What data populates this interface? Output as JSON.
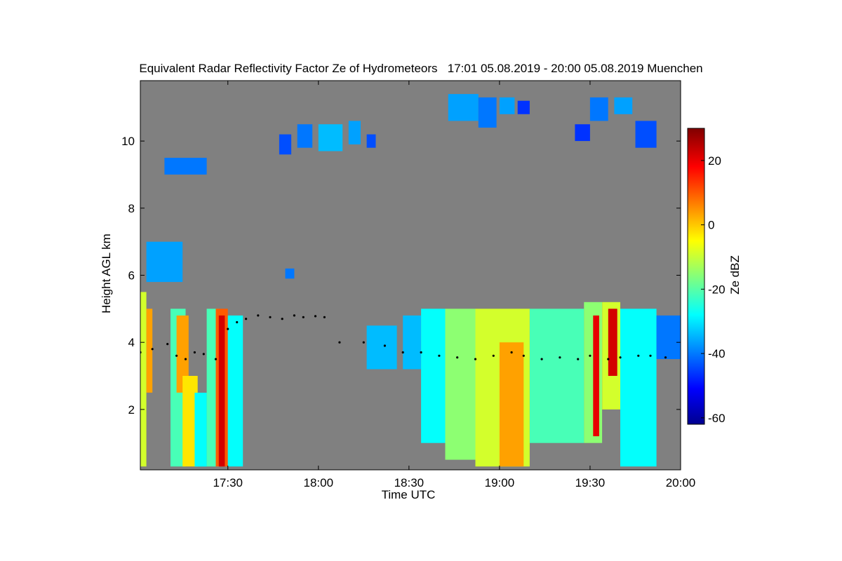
{
  "chart_data": {
    "type": "heatmap",
    "title": "Equivalent Radar Reflectivity Factor Ze of Hydrometeors   17:01 05.08.2019 - 20:00 05.08.2019 Muenchen",
    "xlabel": "Time UTC",
    "ylabel": "Height AGL km",
    "x_unit": "minutes since 17:00 UTC",
    "xlim": [
      1,
      180
    ],
    "ylim": [
      0.2,
      11.8
    ],
    "xticks": [
      {
        "value": 30,
        "label": "17:30"
      },
      {
        "value": 60,
        "label": "18:00"
      },
      {
        "value": 90,
        "label": "18:30"
      },
      {
        "value": 120,
        "label": "19:00"
      },
      {
        "value": 150,
        "label": "19:30"
      },
      {
        "value": 180,
        "label": "20:00"
      }
    ],
    "yticks": [
      {
        "value": 2,
        "label": "2"
      },
      {
        "value": 4,
        "label": "4"
      },
      {
        "value": 6,
        "label": "6"
      },
      {
        "value": 8,
        "label": "8"
      },
      {
        "value": 10,
        "label": "10"
      }
    ],
    "colorbar": {
      "label": "Ze dBZ",
      "range": [
        -62,
        30
      ],
      "ticks": [
        {
          "value": 20,
          "label": "20"
        },
        {
          "value": 0,
          "label": "0"
        },
        {
          "value": -20,
          "label": "-20"
        },
        {
          "value": -40,
          "label": "-40"
        },
        {
          "value": -60,
          "label": "-60"
        }
      ],
      "colormap": [
        "#00008f",
        "#0000ff",
        "#00ffff",
        "#ffff00",
        "#ff0000",
        "#800000"
      ]
    },
    "background_color": "#808080",
    "cells": [
      {
        "t0": 1,
        "t1": 3,
        "z0": 0.3,
        "z1": 5.5,
        "ze": -10
      },
      {
        "t0": 3,
        "t1": 5,
        "z0": 2.5,
        "z1": 5.0,
        "ze": 0
      },
      {
        "t0": 11,
        "t1": 16,
        "z0": 0.3,
        "z1": 5.0,
        "ze": -20
      },
      {
        "t0": 13,
        "t1": 17,
        "z0": 2.5,
        "z1": 4.8,
        "ze": 0
      },
      {
        "t0": 15,
        "t1": 20,
        "z0": 0.3,
        "z1": 3.0,
        "ze": -5
      },
      {
        "t0": 19,
        "t1": 23,
        "z0": 0.3,
        "z1": 2.5,
        "ze": -25
      },
      {
        "t0": 23,
        "t1": 27,
        "z0": 0.3,
        "z1": 5.0,
        "ze": -20
      },
      {
        "t0": 26,
        "t1": 30,
        "z0": 0.3,
        "z1": 5.0,
        "ze": 5
      },
      {
        "t0": 27,
        "t1": 29,
        "z0": 0.3,
        "z1": 4.8,
        "ze": 18
      },
      {
        "t0": 30,
        "t1": 35,
        "z0": 0.3,
        "z1": 4.8,
        "ze": -25
      },
      {
        "t0": 76,
        "t1": 86,
        "z0": 3.2,
        "z1": 4.5,
        "ze": -30
      },
      {
        "t0": 88,
        "t1": 94,
        "z0": 3.2,
        "z1": 4.8,
        "ze": -30
      },
      {
        "t0": 94,
        "t1": 102,
        "z0": 1.0,
        "z1": 5.0,
        "ze": -25
      },
      {
        "t0": 102,
        "t1": 112,
        "z0": 0.5,
        "z1": 5.0,
        "ze": -15
      },
      {
        "t0": 112,
        "t1": 130,
        "z0": 0.3,
        "z1": 5.0,
        "ze": -10
      },
      {
        "t0": 120,
        "t1": 128,
        "z0": 0.3,
        "z1": 4.0,
        "ze": 0
      },
      {
        "t0": 130,
        "t1": 148,
        "z0": 1.0,
        "z1": 5.0,
        "ze": -20
      },
      {
        "t0": 148,
        "t1": 154,
        "z0": 1.0,
        "z1": 5.2,
        "ze": -15
      },
      {
        "t0": 151,
        "t1": 153,
        "z0": 1.2,
        "z1": 4.8,
        "ze": 15
      },
      {
        "t0": 154,
        "t1": 160,
        "z0": 2.0,
        "z1": 5.2,
        "ze": -10
      },
      {
        "t0": 156,
        "t1": 159,
        "z0": 3.0,
        "z1": 5.0,
        "ze": 18
      },
      {
        "t0": 160,
        "t1": 172,
        "z0": 0.3,
        "z1": 5.0,
        "ze": -25
      },
      {
        "t0": 172,
        "t1": 180,
        "z0": 3.5,
        "z1": 4.8,
        "ze": -35
      },
      {
        "t0": 3,
        "t1": 15,
        "z0": 5.8,
        "z1": 7.0,
        "ze": -32
      },
      {
        "t0": 9,
        "t1": 23,
        "z0": 9.0,
        "z1": 9.5,
        "ze": -35
      },
      {
        "t0": 49,
        "t1": 52,
        "z0": 5.9,
        "z1": 6.2,
        "ze": -35
      },
      {
        "t0": 47,
        "t1": 51,
        "z0": 9.6,
        "z1": 10.2,
        "ze": -38
      },
      {
        "t0": 53,
        "t1": 58,
        "z0": 9.8,
        "z1": 10.5,
        "ze": -35
      },
      {
        "t0": 60,
        "t1": 68,
        "z0": 9.7,
        "z1": 10.5,
        "ze": -30
      },
      {
        "t0": 70,
        "t1": 74,
        "z0": 9.9,
        "z1": 10.6,
        "ze": -32
      },
      {
        "t0": 76,
        "t1": 79,
        "z0": 9.8,
        "z1": 10.2,
        "ze": -38
      },
      {
        "t0": 103,
        "t1": 113,
        "z0": 10.6,
        "z1": 11.4,
        "ze": -32
      },
      {
        "t0": 113,
        "t1": 119,
        "z0": 10.4,
        "z1": 11.3,
        "ze": -35
      },
      {
        "t0": 120,
        "t1": 125,
        "z0": 10.8,
        "z1": 11.3,
        "ze": -32
      },
      {
        "t0": 126,
        "t1": 130,
        "z0": 10.8,
        "z1": 11.2,
        "ze": -40
      },
      {
        "t0": 145,
        "t1": 150,
        "z0": 10.0,
        "z1": 10.5,
        "ze": -40
      },
      {
        "t0": 150,
        "t1": 156,
        "z0": 10.6,
        "z1": 11.3,
        "ze": -35
      },
      {
        "t0": 158,
        "t1": 164,
        "z0": 10.8,
        "z1": 11.3,
        "ze": -32
      },
      {
        "t0": 165,
        "t1": 172,
        "z0": 9.8,
        "z1": 10.6,
        "ze": -38
      }
    ],
    "melting_layer": [
      [
        1,
        3.7
      ],
      [
        5,
        3.8
      ],
      [
        10,
        3.95
      ],
      [
        13,
        3.6
      ],
      [
        16,
        3.5
      ],
      [
        19,
        3.7
      ],
      [
        22,
        3.65
      ],
      [
        26,
        3.5
      ],
      [
        30,
        4.4
      ],
      [
        33,
        4.6
      ],
      [
        36,
        4.7
      ],
      [
        40,
        4.8
      ],
      [
        44,
        4.75
      ],
      [
        48,
        4.7
      ],
      [
        52,
        4.8
      ],
      [
        55,
        4.75
      ],
      [
        59,
        4.78
      ],
      [
        62,
        4.75
      ],
      [
        67,
        4.0
      ],
      [
        75,
        4.0
      ],
      [
        82,
        3.9
      ],
      [
        88,
        3.7
      ],
      [
        94,
        3.7
      ],
      [
        100,
        3.6
      ],
      [
        106,
        3.55
      ],
      [
        112,
        3.5
      ],
      [
        118,
        3.6
      ],
      [
        124,
        3.7
      ],
      [
        128,
        3.6
      ],
      [
        134,
        3.5
      ],
      [
        140,
        3.55
      ],
      [
        146,
        3.5
      ],
      [
        150,
        3.6
      ],
      [
        156,
        3.5
      ],
      [
        160,
        3.55
      ],
      [
        166,
        3.6
      ],
      [
        170,
        3.6
      ],
      [
        175,
        3.55
      ]
    ]
  }
}
